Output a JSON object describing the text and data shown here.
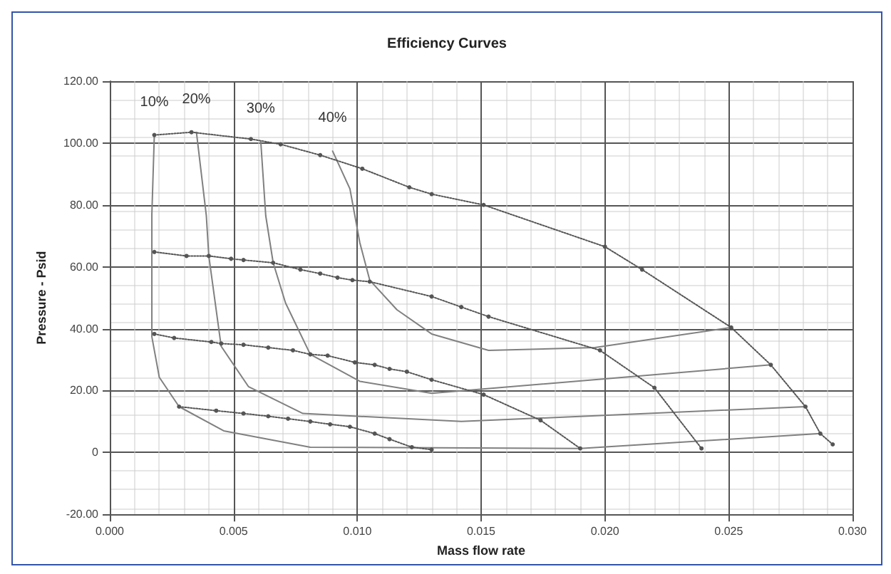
{
  "chart_data": {
    "type": "line",
    "title": "Efficiency Curves",
    "xlabel": "Mass flow rate",
    "ylabel": "Pressure - Psid",
    "xlim": [
      0,
      0.03
    ],
    "ylim": [
      -20,
      120
    ],
    "xticks": [
      {
        "value": 0,
        "label": "0.000"
      },
      {
        "value": 0.005,
        "label": "0.005"
      },
      {
        "value": 0.01,
        "label": "0.010"
      },
      {
        "value": 0.015,
        "label": "0.015"
      },
      {
        "value": 0.02,
        "label": "0.020"
      },
      {
        "value": 0.025,
        "label": "0.025"
      },
      {
        "value": 0.03,
        "label": "0.030"
      }
    ],
    "yticks": [
      {
        "value": -20,
        "label": "-20.00"
      },
      0,
      {
        "value": 20,
        "label": "20.00"
      },
      {
        "value": 40,
        "label": "40.00"
      },
      {
        "value": 60,
        "label": "60.00"
      },
      {
        "value": 80,
        "label": "80.00"
      },
      {
        "value": 100,
        "label": "100.00"
      },
      {
        "value": 120,
        "label": "120.00"
      }
    ],
    "grid": true,
    "legend": false,
    "series": [
      {
        "name": "10%",
        "color": "#808080",
        "line_style": "solid",
        "marker": "none",
        "x": [
          0.0018,
          0.0017,
          0.0017,
          0.002,
          0.0028,
          0.0046,
          0.0081,
          0.019,
          0.0287
        ],
        "values": [
          102.6,
          77,
          37.4,
          24.3,
          14.8,
          7,
          1.7,
          1.3,
          6.1
        ]
      },
      {
        "name": "20%",
        "color": "#808080",
        "line_style": "solid",
        "marker": "none",
        "x": [
          0.0035,
          0.0039,
          0.004,
          0.0045,
          0.0056,
          0.0078,
          0.0142,
          0.0281
        ],
        "values": [
          103.5,
          76.5,
          63.5,
          34.3,
          21.3,
          12.6,
          10,
          14.8
        ]
      },
      {
        "name": "30%",
        "color": "#808080",
        "line_style": "solid",
        "marker": "none",
        "x": [
          0.0061,
          0.0063,
          0.0066,
          0.0071,
          0.0081,
          0.0101,
          0.013,
          0.0267
        ],
        "values": [
          100.4,
          76.5,
          61.3,
          48.3,
          31.7,
          23,
          19.1,
          28.3
        ]
      },
      {
        "name": "40%",
        "color": "#808080",
        "line_style": "solid",
        "marker": "none",
        "x": [
          0.009,
          0.0097,
          0.0101,
          0.0105,
          0.0116,
          0.013,
          0.0153,
          0.0196,
          0.0251
        ],
        "values": [
          97.4,
          85.2,
          67.8,
          55.7,
          46.1,
          38.3,
          33,
          33.9,
          40.4
        ]
      },
      {
        "color": "#555555",
        "line_style": "dotted",
        "marker": "circle",
        "x": [
          0.0018,
          0.0033,
          0.0057,
          0.0069,
          0.0085,
          0.0102,
          0.0121,
          0.013,
          0.0151,
          0.02,
          0.0215,
          0.0251,
          0.0267,
          0.0281,
          0.0287,
          0.0292
        ],
        "values": [
          102.6,
          103.5,
          101.3,
          99.6,
          96.1,
          91.7,
          85.7,
          83.5,
          80,
          66.5,
          59.1,
          40.4,
          28.3,
          14.8,
          6.1,
          2.6
        ]
      },
      {
        "color": "#555555",
        "line_style": "dotted",
        "marker": "circle",
        "x": [
          0.0018,
          0.0031,
          0.004,
          0.0049,
          0.0054,
          0.0066,
          0.0077,
          0.0085,
          0.0092,
          0.0098,
          0.0105,
          0.013,
          0.0142,
          0.0153,
          0.0198,
          0.022,
          0.0239
        ],
        "values": [
          64.8,
          63.5,
          63.5,
          62.6,
          62.2,
          61.3,
          59.1,
          57.8,
          56.5,
          55.7,
          55.2,
          50.4,
          47,
          43.9,
          33,
          20.9,
          1.3
        ]
      },
      {
        "color": "#555555",
        "line_style": "dotted",
        "marker": "circle",
        "x": [
          0.0018,
          0.0026,
          0.0041,
          0.0045,
          0.0054,
          0.0064,
          0.0074,
          0.0081,
          0.0088,
          0.0099,
          0.0107,
          0.0113,
          0.012,
          0.013,
          0.0151,
          0.0174,
          0.019
        ],
        "values": [
          38.3,
          37,
          35.7,
          35.2,
          34.8,
          33.9,
          33,
          31.7,
          31.3,
          29.1,
          28.3,
          27,
          26.1,
          23.5,
          18.7,
          10.4,
          1.3
        ]
      },
      {
        "color": "#555555",
        "line_style": "dotted",
        "marker": "circle",
        "x": [
          0.0028,
          0.0043,
          0.0054,
          0.0064,
          0.0072,
          0.0081,
          0.0089,
          0.0097,
          0.0107,
          0.0113,
          0.0122,
          0.013
        ],
        "values": [
          14.8,
          13.5,
          12.6,
          11.7,
          10.9,
          10,
          9.1,
          8.3,
          6.1,
          4.3,
          1.7,
          0.9
        ]
      }
    ]
  }
}
